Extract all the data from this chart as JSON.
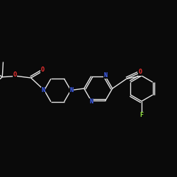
{
  "background_color": "#0a0a0a",
  "bond_color": "#e8e8e8",
  "atom_colors": {
    "N": "#4466ff",
    "O": "#ff3333",
    "F": "#99ee44",
    "C": "#e8e8e8"
  },
  "figsize": [
    2.5,
    2.5
  ],
  "dpi": 100,
  "lw": 1.0,
  "fs": 6.0
}
